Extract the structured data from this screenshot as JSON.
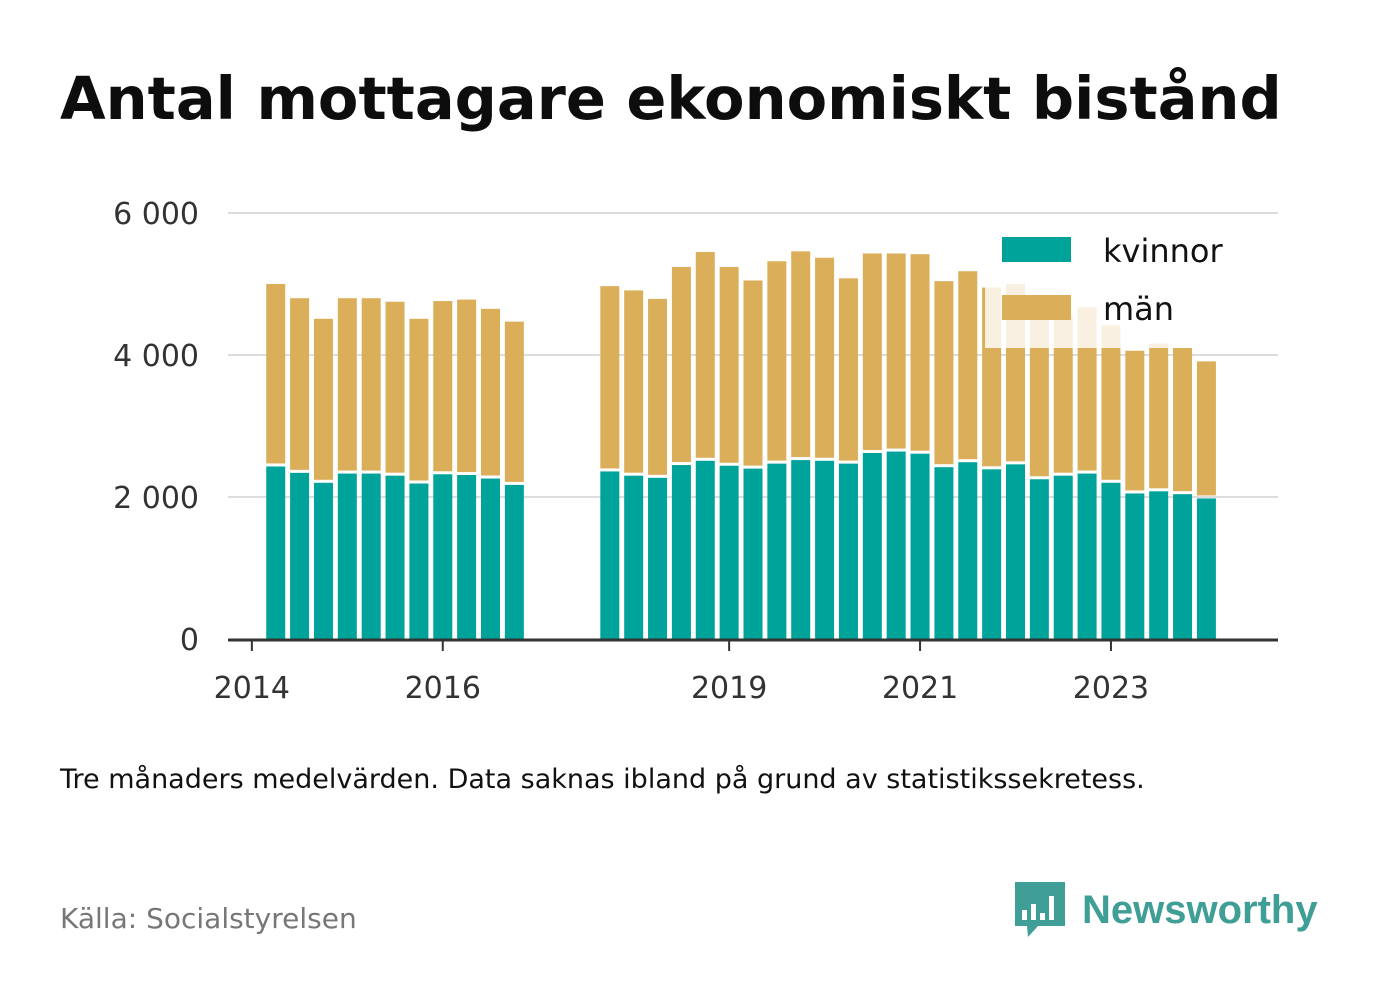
{
  "title": "Antal mottagare ekonomiskt bistånd",
  "footnote": "Tre månaders medelvärden. Data saknas ibland på grund av statistikssekretess.",
  "source": "Källa: Socialstyrelsen",
  "logo": {
    "text": "Newsworthy",
    "icon": "bar-chart-speech-bubble-icon"
  },
  "colors": {
    "kvinnor": "#00a39a",
    "man": "#dbae5a",
    "grid": "#dddddd",
    "axis": "#333333",
    "brand": "#3f9e95"
  },
  "chart_data": {
    "type": "bar",
    "stacked": true,
    "ylim": [
      0,
      6000
    ],
    "yticks": [
      {
        "value": 0,
        "label": "0"
      },
      {
        "value": 2000,
        "label": "2 000"
      },
      {
        "value": 4000,
        "label": "4 000"
      },
      {
        "value": 6000,
        "label": "6 000"
      }
    ],
    "xticks": [
      {
        "value": "2014-01",
        "label": "2014"
      },
      {
        "value": "2016-01",
        "label": "2016"
      },
      {
        "value": "2019-01",
        "label": "2019"
      },
      {
        "value": "2021-01",
        "label": "2021"
      },
      {
        "value": "2023-01",
        "label": "2023"
      }
    ],
    "xlim": [
      "2013-10",
      "2024-10"
    ],
    "legend_position": "top-right",
    "grid": true,
    "categories": [
      "2014-04",
      "2014-07",
      "2014-10",
      "2015-01",
      "2015-04",
      "2015-07",
      "2015-10",
      "2016-01",
      "2016-04",
      "2016-07",
      "2016-10",
      "2017-10",
      "2018-01",
      "2018-04",
      "2018-07",
      "2018-10",
      "2019-01",
      "2019-04",
      "2019-07",
      "2019-10",
      "2020-01",
      "2020-04",
      "2020-07",
      "2020-10",
      "2021-01",
      "2021-04",
      "2021-07",
      "2021-10",
      "2022-01",
      "2022-04",
      "2022-07",
      "2022-10",
      "2023-01",
      "2023-04",
      "2023-07",
      "2023-10",
      "2024-01",
      "2024-04"
    ],
    "series": [
      {
        "name": "kvinnor",
        "values": [
          2430,
          2340,
          2200,
          2330,
          2330,
          2300,
          2190,
          2320,
          2310,
          2260,
          2170,
          2360,
          2300,
          2270,
          2450,
          2510,
          2440,
          2400,
          2470,
          2520,
          2510,
          2470,
          2620,
          2640,
          2610,
          2420,
          2490,
          2390,
          2460,
          2250,
          2300,
          2330,
          2200,
          2050,
          2080,
          2040,
          1980,
          null
        ]
      },
      {
        "name": "män",
        "values": [
          2570,
          2460,
          2310,
          2470,
          2470,
          2450,
          2320,
          2440,
          2470,
          2390,
          2300,
          2610,
          2610,
          2520,
          2790,
          2940,
          2800,
          2650,
          2850,
          2940,
          2860,
          2610,
          2810,
          2790,
          2810,
          2620,
          2690,
          2560,
          2540,
          2340,
          2270,
          2340,
          2220,
          2010,
          2080,
          2060,
          1930,
          null
        ]
      }
    ]
  }
}
